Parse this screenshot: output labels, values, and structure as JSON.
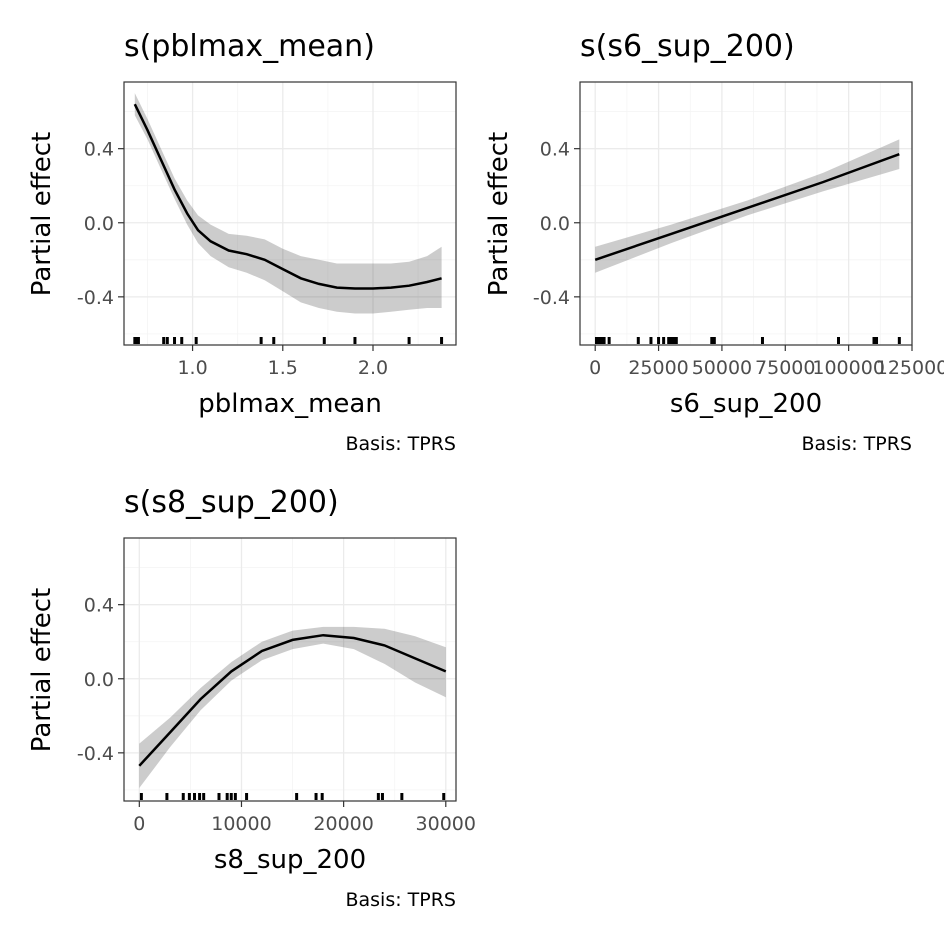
{
  "chart_data": [
    {
      "type": "line",
      "title": "s(pblmax_mean)",
      "xlabel": "pblmax_mean",
      "ylabel": "Partial effect",
      "caption": "Basis: TPRS",
      "xlim": [
        0.62,
        2.46
      ],
      "ylim": [
        -0.66,
        0.76
      ],
      "x_ticks": [
        1.0,
        1.5,
        2.0
      ],
      "x_tick_labels": [
        "1.0",
        "1.5",
        "2.0"
      ],
      "y_ticks": [
        0.4,
        0.0,
        -0.4
      ],
      "y_tick_labels": [
        "0.4",
        "0.0",
        "-0.4"
      ],
      "grid": true,
      "x": [
        0.68,
        0.75,
        0.82,
        0.9,
        0.97,
        1.03,
        1.1,
        1.2,
        1.3,
        1.4,
        1.5,
        1.6,
        1.7,
        1.8,
        1.9,
        2.0,
        2.1,
        2.2,
        2.3,
        2.38
      ],
      "fit": [
        0.64,
        0.5,
        0.35,
        0.18,
        0.05,
        -0.04,
        -0.1,
        -0.15,
        -0.17,
        -0.2,
        -0.25,
        -0.3,
        -0.33,
        -0.35,
        -0.355,
        -0.355,
        -0.35,
        -0.34,
        -0.32,
        -0.3
      ],
      "lower": [
        0.58,
        0.45,
        0.3,
        0.13,
        -0.01,
        -0.11,
        -0.18,
        -0.24,
        -0.27,
        -0.31,
        -0.37,
        -0.43,
        -0.46,
        -0.48,
        -0.49,
        -0.49,
        -0.48,
        -0.47,
        -0.46,
        -0.46
      ],
      "upper": [
        0.7,
        0.56,
        0.41,
        0.24,
        0.12,
        0.04,
        -0.01,
        -0.06,
        -0.07,
        -0.09,
        -0.14,
        -0.18,
        -0.2,
        -0.22,
        -0.22,
        -0.22,
        -0.22,
        -0.21,
        -0.18,
        -0.13
      ],
      "rug": [
        0.68,
        0.69,
        0.7,
        0.84,
        0.86,
        0.9,
        0.94,
        1.02,
        1.38,
        1.45,
        1.73,
        1.9,
        2.2,
        2.38
      ]
    },
    {
      "type": "line",
      "title": "s(s6_sup_200)",
      "xlabel": "s6_sup_200",
      "ylabel": "Partial effect",
      "caption": "Basis: TPRS",
      "xlim": [
        -6000,
        125000
      ],
      "ylim": [
        -0.66,
        0.76
      ],
      "x_ticks": [
        0,
        25000,
        50000,
        75000,
        100000,
        125000
      ],
      "x_tick_labels": [
        "0",
        "25000",
        "50000",
        "75000",
        "100000",
        "125000"
      ],
      "y_ticks": [
        0.4,
        0.0,
        -0.4
      ],
      "y_tick_labels": [
        "0.4",
        "0.0",
        "-0.4"
      ],
      "grid": true,
      "x": [
        0,
        30000,
        60000,
        90000,
        120000
      ],
      "fit": [
        -0.2,
        -0.06,
        0.08,
        0.22,
        0.37
      ],
      "lower": [
        -0.27,
        -0.11,
        0.04,
        0.17,
        0.29
      ],
      "upper": [
        -0.13,
        -0.01,
        0.12,
        0.27,
        0.45
      ],
      "rug": [
        500,
        1500,
        2500,
        3500,
        5500,
        17000,
        22000,
        25000,
        27000,
        29000,
        30000,
        31000,
        32000,
        46000,
        47000,
        66000,
        96000,
        110000,
        111000,
        120000
      ]
    },
    {
      "type": "line",
      "title": "s(s8_sup_200)",
      "xlabel": "s8_sup_200",
      "ylabel": "Partial effect",
      "caption": "Basis: TPRS",
      "xlim": [
        -1500,
        31000
      ],
      "ylim": [
        -0.66,
        0.76
      ],
      "x_ticks": [
        0,
        10000,
        20000,
        30000
      ],
      "x_tick_labels": [
        "0",
        "10000",
        "20000",
        "30000"
      ],
      "y_ticks": [
        0.4,
        0.0,
        -0.4
      ],
      "y_tick_labels": [
        "0.4",
        "0.0",
        "-0.4"
      ],
      "grid": true,
      "x": [
        0,
        3000,
        6000,
        9000,
        12000,
        15000,
        18000,
        21000,
        24000,
        27000,
        30000
      ],
      "fit": [
        -0.47,
        -0.29,
        -0.11,
        0.04,
        0.15,
        0.21,
        0.235,
        0.22,
        0.18,
        0.11,
        0.04
      ],
      "lower": [
        -0.59,
        -0.37,
        -0.17,
        -0.01,
        0.1,
        0.16,
        0.19,
        0.16,
        0.08,
        -0.02,
        -0.1
      ],
      "upper": [
        -0.35,
        -0.21,
        -0.05,
        0.09,
        0.2,
        0.26,
        0.28,
        0.28,
        0.27,
        0.23,
        0.17
      ],
      "rug": [
        200,
        2700,
        4300,
        4900,
        5400,
        5900,
        6300,
        7800,
        8600,
        9000,
        9400,
        10500,
        15400,
        17300,
        17900,
        23400,
        23800,
        25700,
        29800
      ]
    }
  ]
}
